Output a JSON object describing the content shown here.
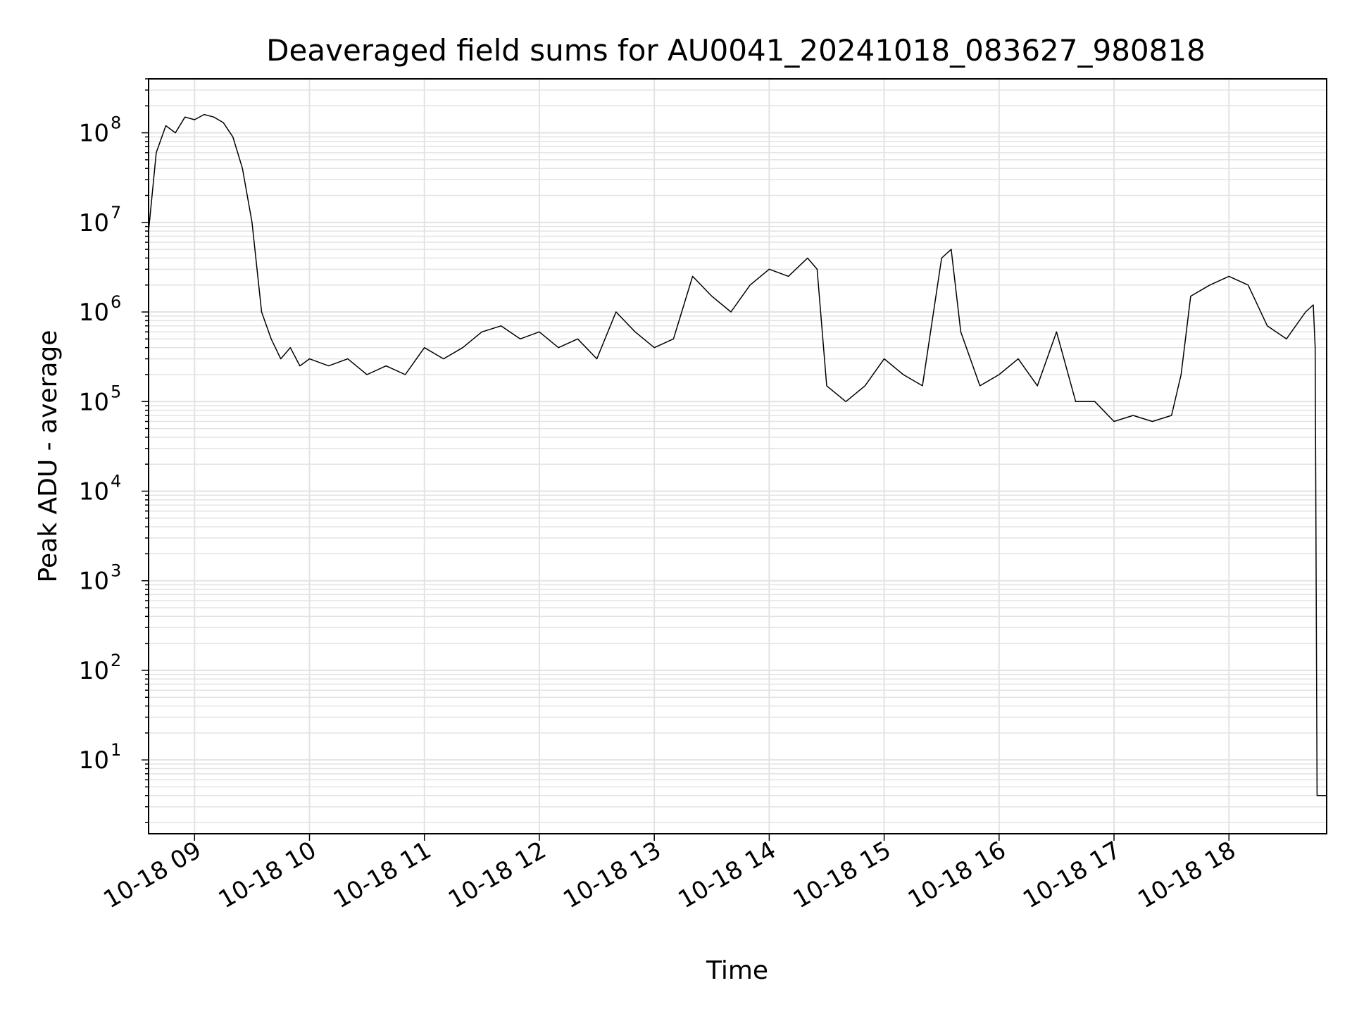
{
  "chart_data": {
    "type": "line",
    "title": "Deaveraged field sums for AU0041_20241018_083627_980818",
    "xlabel": "Time",
    "ylabel": "Peak ADU - average",
    "yscale": "log",
    "ylim": [
      1.5,
      400000000.0
    ],
    "xlim": [
      "2024-10-18 08:36",
      "2024-10-18 18:51"
    ],
    "grid": true,
    "line_color": "#000000",
    "grid_color": "#e3e3e3",
    "x_ticks": [
      "10-18 09",
      "10-18 10",
      "10-18 11",
      "10-18 12",
      "10-18 13",
      "10-18 14",
      "10-18 15",
      "10-18 16",
      "10-18 17",
      "10-18 18"
    ],
    "y_ticks": [
      {
        "base": "10",
        "exp": "1"
      },
      {
        "base": "10",
        "exp": "2"
      },
      {
        "base": "10",
        "exp": "3"
      },
      {
        "base": "10",
        "exp": "4"
      },
      {
        "base": "10",
        "exp": "5"
      },
      {
        "base": "10",
        "exp": "6"
      },
      {
        "base": "10",
        "exp": "7"
      },
      {
        "base": "10",
        "exp": "8"
      }
    ],
    "series": [
      {
        "x": [
          "2024-10-18 08:36",
          "2024-10-18 08:40",
          "2024-10-18 08:45",
          "2024-10-18 08:50",
          "2024-10-18 08:55",
          "2024-10-18 09:00",
          "2024-10-18 09:05",
          "2024-10-18 09:10",
          "2024-10-18 09:15",
          "2024-10-18 09:20",
          "2024-10-18 09:25",
          "2024-10-18 09:30",
          "2024-10-18 09:35",
          "2024-10-18 09:40",
          "2024-10-18 09:45",
          "2024-10-18 09:50",
          "2024-10-18 09:55",
          "2024-10-18 10:00",
          "2024-10-18 10:10",
          "2024-10-18 10:20",
          "2024-10-18 10:30",
          "2024-10-18 10:40",
          "2024-10-18 10:50",
          "2024-10-18 11:00",
          "2024-10-18 11:10",
          "2024-10-18 11:20",
          "2024-10-18 11:30",
          "2024-10-18 11:40",
          "2024-10-18 11:50",
          "2024-10-18 12:00",
          "2024-10-18 12:10",
          "2024-10-18 12:20",
          "2024-10-18 12:30",
          "2024-10-18 12:40",
          "2024-10-18 12:50",
          "2024-10-18 13:00",
          "2024-10-18 13:10",
          "2024-10-18 13:20",
          "2024-10-18 13:30",
          "2024-10-18 13:40",
          "2024-10-18 13:50",
          "2024-10-18 14:00",
          "2024-10-18 14:10",
          "2024-10-18 14:20",
          "2024-10-18 14:25",
          "2024-10-18 14:30",
          "2024-10-18 14:40",
          "2024-10-18 14:50",
          "2024-10-18 15:00",
          "2024-10-18 15:10",
          "2024-10-18 15:20",
          "2024-10-18 15:30",
          "2024-10-18 15:35",
          "2024-10-18 15:40",
          "2024-10-18 15:50",
          "2024-10-18 16:00",
          "2024-10-18 16:10",
          "2024-10-18 16:20",
          "2024-10-18 16:30",
          "2024-10-18 16:40",
          "2024-10-18 16:50",
          "2024-10-18 17:00",
          "2024-10-18 17:10",
          "2024-10-18 17:20",
          "2024-10-18 17:30",
          "2024-10-18 17:35",
          "2024-10-18 17:40",
          "2024-10-18 17:50",
          "2024-10-18 18:00",
          "2024-10-18 18:10",
          "2024-10-18 18:20",
          "2024-10-18 18:30",
          "2024-10-18 18:40",
          "2024-10-18 18:44",
          "2024-10-18 18:45",
          "2024-10-18 18:46",
          "2024-10-18 18:51"
        ],
        "values": [
          8000000,
          60000000,
          120000000,
          100000000,
          150000000,
          140000000,
          160000000,
          150000000,
          130000000,
          90000000,
          40000000,
          10000000,
          1000000,
          500000,
          300000,
          400000,
          250000,
          300000,
          250000,
          300000,
          200000,
          250000,
          200000,
          400000,
          300000,
          400000,
          600000,
          700000,
          500000,
          600000,
          400000,
          500000,
          300000,
          1000000,
          600000,
          400000,
          500000,
          2500000,
          1500000,
          1000000,
          2000000,
          3000000,
          2500000,
          4000000,
          3000000,
          150000,
          100000,
          150000,
          300000,
          200000,
          150000,
          4000000,
          5000000,
          600000,
          150000,
          200000,
          300000,
          150000,
          600000,
          100000,
          100000,
          60000,
          70000,
          60000,
          70000,
          200000,
          1500000,
          2000000,
          2500000,
          2000000,
          700000,
          500000,
          1000000,
          1200000,
          400000,
          4,
          4
        ]
      }
    ]
  }
}
